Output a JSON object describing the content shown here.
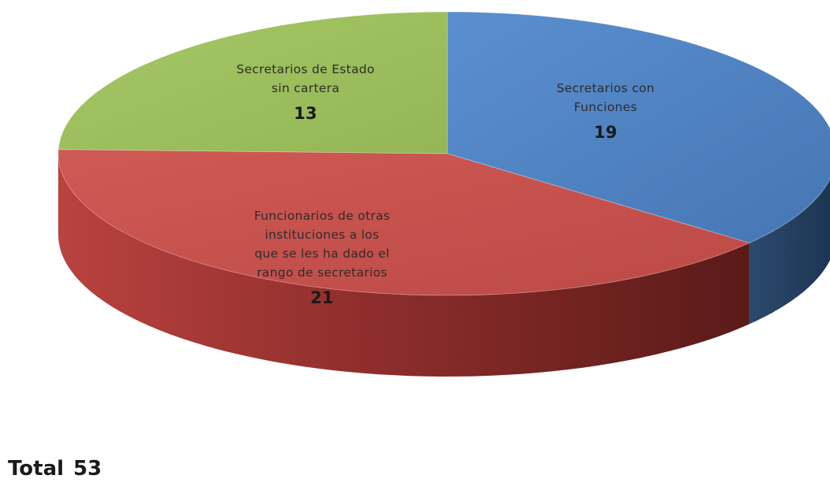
{
  "chart_data": {
    "type": "pie",
    "slices": [
      {
        "label_lines": [
          "Secretarios con",
          "Funciones"
        ],
        "value": 19,
        "color": "#4f81bd"
      },
      {
        "label_lines": [
          "Funcionarios de otras",
          "instituciones a los",
          "que se les ha dado el",
          "rango de secretarios"
        ],
        "value": 21,
        "color": "#c0504d"
      },
      {
        "label_lines": [
          "Secretarios de Estado",
          "sin cartera"
        ],
        "value": 13,
        "color": "#9bbb59"
      }
    ],
    "total_label": "Total",
    "total_value": "53",
    "three_d": true
  }
}
